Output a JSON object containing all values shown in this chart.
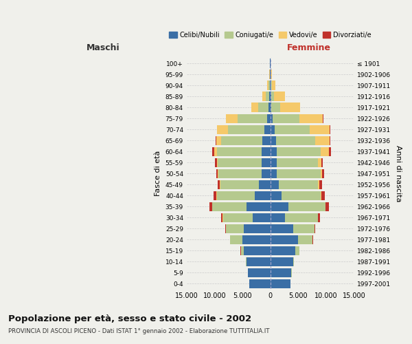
{
  "age_groups": [
    "0-4",
    "5-9",
    "10-14",
    "15-19",
    "20-24",
    "25-29",
    "30-34",
    "35-39",
    "40-44",
    "45-49",
    "50-54",
    "55-59",
    "60-64",
    "65-69",
    "70-74",
    "75-79",
    "80-84",
    "85-89",
    "90-94",
    "95-99",
    "100+"
  ],
  "birth_years": [
    "1997-2001",
    "1992-1996",
    "1987-1991",
    "1982-1986",
    "1977-1981",
    "1972-1976",
    "1967-1971",
    "1962-1966",
    "1957-1961",
    "1952-1956",
    "1947-1951",
    "1942-1946",
    "1937-1941",
    "1932-1936",
    "1927-1931",
    "1922-1926",
    "1917-1921",
    "1912-1916",
    "1907-1911",
    "1902-1906",
    "≤ 1901"
  ],
  "maschi": {
    "celibi": [
      3800,
      4000,
      4300,
      4700,
      5000,
      4800,
      3200,
      4200,
      2800,
      2000,
      1500,
      1600,
      1600,
      1400,
      1000,
      550,
      280,
      150,
      80,
      40,
      15
    ],
    "coniugati": [
      10,
      30,
      100,
      600,
      2200,
      3200,
      5300,
      6200,
      6800,
      7000,
      7800,
      7800,
      8000,
      7400,
      6600,
      5300,
      1900,
      700,
      250,
      60,
      25
    ],
    "vedovi": [
      0,
      0,
      0,
      5,
      5,
      10,
      15,
      25,
      35,
      55,
      100,
      200,
      500,
      850,
      1900,
      2100,
      1200,
      600,
      200,
      50,
      10
    ],
    "divorziati": [
      1,
      2,
      5,
      20,
      50,
      100,
      280,
      500,
      480,
      380,
      280,
      280,
      380,
      180,
      90,
      50,
      20,
      15,
      5,
      3,
      1
    ]
  },
  "femmine": {
    "nubili": [
      3600,
      3800,
      4100,
      4500,
      5000,
      4100,
      2700,
      3300,
      2000,
      1500,
      1100,
      1100,
      1100,
      1000,
      800,
      450,
      180,
      120,
      60,
      30,
      10
    ],
    "coniugate": [
      10,
      30,
      100,
      700,
      2600,
      3800,
      5800,
      6600,
      7100,
      7100,
      7900,
      7400,
      7900,
      7000,
      6300,
      4800,
      1600,
      600,
      200,
      50,
      20
    ],
    "vedove": [
      0,
      0,
      2,
      5,
      10,
      20,
      30,
      55,
      80,
      160,
      300,
      620,
      1500,
      2600,
      3600,
      4200,
      3600,
      1900,
      700,
      160,
      25
    ],
    "divorziate": [
      1,
      2,
      5,
      20,
      55,
      130,
      360,
      550,
      580,
      480,
      360,
      350,
      450,
      200,
      90,
      55,
      25,
      20,
      8,
      3,
      1
    ]
  },
  "colors": {
    "celibi": "#3a6ea5",
    "coniugati": "#b5c98e",
    "vedovi": "#f5c96a",
    "divorziati": "#c0312b"
  },
  "xlim": 15000,
  "title": "Popolazione per età, sesso e stato civile - 2002",
  "subtitle": "PROVINCIA DI ASCOLI PICENO - Dati ISTAT 1° gennaio 2002 - Elaborazione TUTTITALIA.IT",
  "ylabel_left": "Fasce di età",
  "ylabel_right": "Anni di nascita",
  "xlabel_maschi": "Maschi",
  "xlabel_femmine": "Femmine",
  "bg_color": "#f0f0eb",
  "tick_labels": [
    "15.000",
    "10.000",
    "5.000",
    "0",
    "5.000",
    "10.000",
    "15.000"
  ],
  "tick_values": [
    -15000,
    -10000,
    -5000,
    0,
    5000,
    10000,
    15000
  ]
}
